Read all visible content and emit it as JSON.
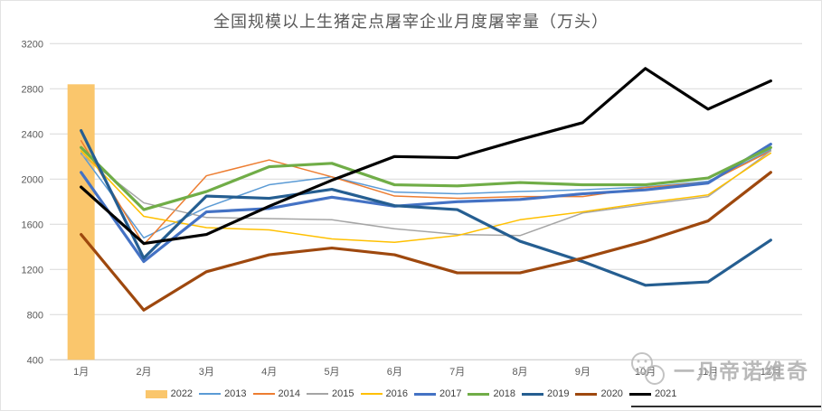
{
  "chart_title": "全国规模以上生猪定点屠宰企业月度屠宰量（万头）",
  "watermark": {
    "text": "一凡帝诺维奇",
    "logo": "panda-doodle-icon"
  },
  "chart_data": {
    "type": "combo-bar-line",
    "title": "全国规模以上生猪定点屠宰企业月度屠宰量（万头）",
    "categories": [
      "1月",
      "2月",
      "3月",
      "4月",
      "5月",
      "6月",
      "7月",
      "8月",
      "9月",
      "10月",
      "11月",
      "12月"
    ],
    "y_axis": {
      "min": 400,
      "max": 3200,
      "step": 400,
      "ticks": [
        3200,
        2800,
        2400,
        2000,
        1600,
        1200,
        800,
        400
      ]
    },
    "grid": true,
    "legend_position": "bottom",
    "series": [
      {
        "name": "2022",
        "type": "bar",
        "weight": "bar",
        "color": "#FAC66C",
        "values": [
          2840,
          null,
          null,
          null,
          null,
          null,
          null,
          null,
          null,
          null,
          null,
          null
        ]
      },
      {
        "name": "2013",
        "type": "line",
        "weight": "thin",
        "color": "#5B9BD5",
        "values": [
          2230,
          1480,
          1750,
          1950,
          2020,
          1885,
          1870,
          1890,
          1905,
          1930,
          1980,
          2260
        ]
      },
      {
        "name": "2014",
        "type": "line",
        "weight": "thin",
        "color": "#ED7D31",
        "values": [
          2340,
          1420,
          2030,
          2170,
          2020,
          1850,
          1830,
          1845,
          1845,
          1925,
          1970,
          2250
        ]
      },
      {
        "name": "2015",
        "type": "line",
        "weight": "thin",
        "color": "#A5A5A5",
        "values": [
          2220,
          1790,
          1660,
          1650,
          1640,
          1560,
          1510,
          1500,
          1700,
          1775,
          1845,
          2250
        ]
      },
      {
        "name": "2016",
        "type": "line",
        "weight": "thin",
        "color": "#FFC000",
        "values": [
          2250,
          1670,
          1570,
          1550,
          1470,
          1440,
          1500,
          1640,
          1710,
          1790,
          1860,
          2230
        ]
      },
      {
        "name": "2017",
        "type": "line",
        "weight": "thick",
        "color": "#4472C4",
        "values": [
          2060,
          1270,
          1710,
          1740,
          1840,
          1760,
          1800,
          1820,
          1870,
          1905,
          1965,
          2310
        ]
      },
      {
        "name": "2018",
        "type": "line",
        "weight": "thick",
        "color": "#70AD47",
        "values": [
          2280,
          1730,
          1890,
          2110,
          2140,
          1950,
          1940,
          1970,
          1950,
          1950,
          2010,
          2280
        ]
      },
      {
        "name": "2019",
        "type": "line",
        "weight": "thick",
        "color": "#255E91",
        "values": [
          2430,
          1300,
          1850,
          1830,
          1910,
          1765,
          1730,
          1450,
          1270,
          1060,
          1090,
          1460
        ]
      },
      {
        "name": "2020",
        "type": "line",
        "weight": "thick",
        "color": "#9E480E",
        "values": [
          1510,
          840,
          1180,
          1330,
          1390,
          1330,
          1170,
          1170,
          1300,
          1450,
          1630,
          2060
        ]
      },
      {
        "name": "2021",
        "type": "line",
        "weight": "thick",
        "color": "#000000",
        "values": [
          1930,
          1430,
          1510,
          1760,
          1990,
          2200,
          2190,
          2350,
          2500,
          2980,
          2620,
          2870
        ]
      }
    ]
  }
}
